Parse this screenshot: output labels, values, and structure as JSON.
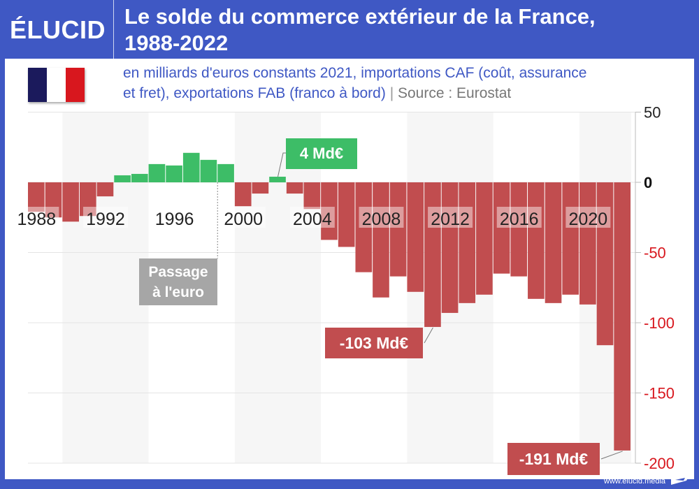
{
  "header": {
    "logo": "ÉLUCID",
    "title_line1": "Le solde du commerce extérieur de la France,",
    "title_line2": "1988-2022"
  },
  "subtitle": {
    "line1": "en milliards d'euros constants 2021, importations CAF (coût, assurance",
    "line2": "et fret), exportations FAB (franco à bord)",
    "separator": "|",
    "source": "Source : Eurostat"
  },
  "flag": {
    "icon": "france-flag-icon",
    "colors": [
      "#1b1a5c",
      "#ffffff",
      "#d8171e"
    ]
  },
  "footer": {
    "url": "www.elucid.media"
  },
  "colors": {
    "positive": "#3dbd67",
    "negative": "#c14d4f",
    "brand": "#3f58c4",
    "annotation_gray": "#a6a6a6",
    "band": "#f6f6f6"
  },
  "annotations": {
    "positive_peak": "4 Md€",
    "euro": [
      "Passage",
      "à l'euro"
    ],
    "low_2011": "-103 Md€",
    "low_2022": "-191 Md€"
  },
  "chart_data": {
    "type": "bar",
    "title": "Le solde du commerce extérieur de la France, 1988-2022",
    "subtitle": "en milliards d'euros constants 2021, importations CAF (coût, assurance et fret), exportations FAB (franco à bord)",
    "source": "Eurostat",
    "xlabel": "",
    "ylabel": "",
    "ylim": [
      -200,
      50
    ],
    "yticks": [
      50,
      0,
      -50,
      -100,
      -150,
      -200
    ],
    "ytick_labels": [
      "50",
      "0",
      "-50",
      "-100",
      "-150",
      "-200"
    ],
    "xtick_labels": [
      "1988",
      "1992",
      "1996",
      "2000",
      "2004",
      "2008",
      "2012",
      "2016",
      "2020"
    ],
    "grid": true,
    "categories": [
      "1988",
      "1989",
      "1990",
      "1991",
      "1992",
      "1993",
      "1994",
      "1995",
      "1996",
      "1997",
      "1998",
      "1999",
      "2000",
      "2001",
      "2002",
      "2003",
      "2004",
      "2005",
      "2006",
      "2007",
      "2008",
      "2009",
      "2010",
      "2011",
      "2012",
      "2013",
      "2014",
      "2015",
      "2016",
      "2017",
      "2018",
      "2019",
      "2020",
      "2021",
      "2022"
    ],
    "values": [
      -21,
      -25,
      -28,
      -24,
      -10,
      5,
      6,
      13,
      12,
      21,
      16,
      13,
      -17,
      -8,
      4,
      -8,
      -19,
      -41,
      -46,
      -64,
      -82,
      -67,
      -78,
      -103,
      -93,
      -86,
      -80,
      -65,
      -67,
      -83,
      -86,
      -80,
      -87,
      -116,
      -191
    ],
    "annotations": [
      {
        "year": "2002",
        "text": "4 Md€"
      },
      {
        "year": "1999",
        "text": "Passage à l'euro"
      },
      {
        "year": "2011",
        "text": "-103 Md€"
      },
      {
        "year": "2022",
        "text": "-191 Md€"
      }
    ]
  }
}
